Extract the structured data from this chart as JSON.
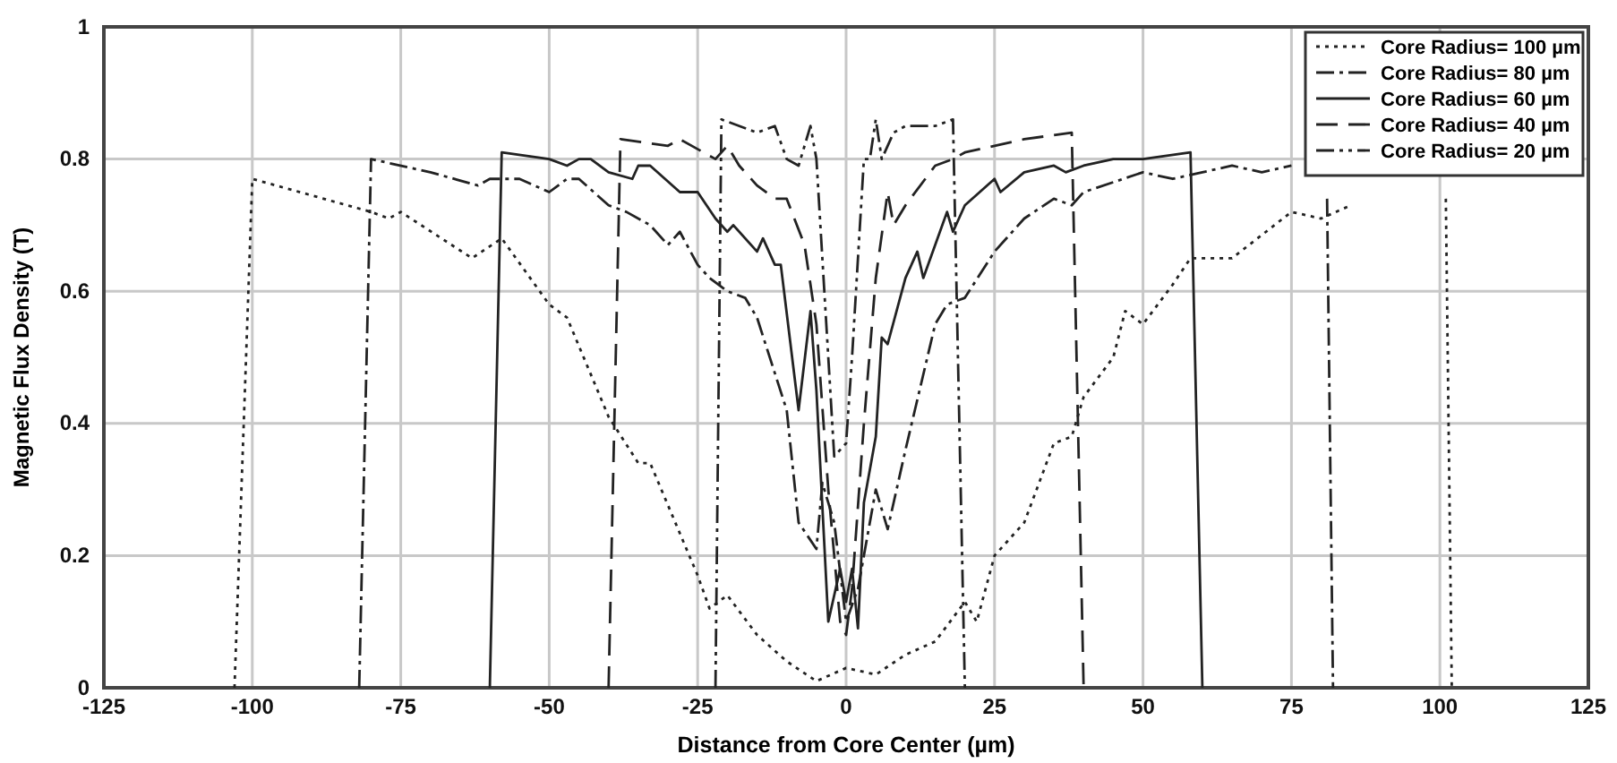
{
  "chart_data": {
    "type": "line",
    "xlabel": "Distance from Core Center (µm)",
    "ylabel": "Magnetic Flux Density (T)",
    "xlim": [
      -125,
      125
    ],
    "xticks": [
      -125,
      -100,
      -75,
      -50,
      -25,
      0,
      25,
      50,
      75,
      100,
      125
    ],
    "ylim": [
      0,
      1
    ],
    "yticks": [
      0,
      0.2,
      0.4,
      0.6,
      0.8,
      1
    ],
    "grid": true,
    "legend": "top right",
    "marker": "none",
    "series": [
      {
        "name": "Core Radius= 100 µm",
        "color": "#222222",
        "line_style": "dotted",
        "x": [
          -103,
          -100,
          -80,
          -77,
          -75,
          -63,
          -58,
          -50,
          -47,
          -40,
          -35,
          -33,
          -25,
          -23,
          -20,
          -15,
          -10,
          -5,
          0,
          5,
          10,
          15,
          20,
          22,
          25,
          30,
          35,
          38,
          40,
          45,
          47,
          50,
          55,
          58,
          65,
          75,
          80,
          85,
          90,
          101,
          102
        ],
        "values": [
          0,
          0.77,
          0.72,
          0.71,
          0.72,
          0.65,
          0.68,
          0.58,
          0.56,
          0.41,
          0.34,
          0.34,
          0.17,
          0.12,
          0.14,
          0.08,
          0.04,
          0.01,
          0.03,
          0.02,
          0.05,
          0.07,
          0.13,
          0.1,
          0.2,
          0.25,
          0.37,
          0.38,
          0.44,
          0.5,
          0.57,
          0.55,
          0.61,
          0.65,
          0.65,
          0.72,
          0.71,
          0.73,
          null,
          0.74,
          0
        ]
      },
      {
        "name": "Core Radius= 80 µm",
        "color": "#222222",
        "line_style": "dashdot",
        "x": [
          -82,
          -80,
          -70,
          -62,
          -60,
          -55,
          -50,
          -47,
          -45,
          -40,
          -37,
          -33,
          -30,
          -28,
          -25,
          -23,
          -20,
          -17,
          -15,
          -10,
          -8,
          -5,
          -4,
          -2,
          0,
          2,
          5,
          7,
          10,
          15,
          17,
          20,
          25,
          30,
          35,
          38,
          40,
          50,
          55,
          60,
          65,
          70,
          75,
          78,
          80,
          81,
          82
        ],
        "values": [
          0,
          0.8,
          0.78,
          0.76,
          0.77,
          0.77,
          0.75,
          0.77,
          0.77,
          0.73,
          0.72,
          0.7,
          0.67,
          0.69,
          0.64,
          0.62,
          0.6,
          0.59,
          0.56,
          0.42,
          0.25,
          0.21,
          0.31,
          0.25,
          0.1,
          0.15,
          0.3,
          0.24,
          0.36,
          0.55,
          0.58,
          0.59,
          0.66,
          0.71,
          0.74,
          0.73,
          0.75,
          0.78,
          0.77,
          0.78,
          0.79,
          0.78,
          0.79,
          null,
          null,
          0.74,
          0
        ]
      },
      {
        "name": "Core Radius= 60 µm",
        "color": "#222222",
        "line_style": "solid",
        "x": [
          -60,
          -58,
          -50,
          -47,
          -45,
          -43,
          -40,
          -36,
          -35,
          -33,
          -28,
          -25,
          -22,
          -20,
          -19,
          -15,
          -14,
          -12,
          -11,
          -8,
          -6,
          -5,
          -3,
          -1,
          0,
          1,
          2,
          3,
          5,
          6,
          7,
          10,
          12,
          13,
          17,
          18,
          20,
          25,
          26,
          30,
          35,
          37,
          40,
          45,
          50,
          58,
          60
        ],
        "values": [
          0,
          0.81,
          0.8,
          0.79,
          0.8,
          0.8,
          0.78,
          0.77,
          0.79,
          0.79,
          0.75,
          0.75,
          0.71,
          0.69,
          0.7,
          0.66,
          0.68,
          0.64,
          0.64,
          0.42,
          0.57,
          0.45,
          0.1,
          0.18,
          0.13,
          0.18,
          0.09,
          0.28,
          0.38,
          0.53,
          0.52,
          0.62,
          0.66,
          0.62,
          0.72,
          0.69,
          0.73,
          0.77,
          0.75,
          0.78,
          0.79,
          0.78,
          0.79,
          0.8,
          0.8,
          0.81,
          0
        ]
      },
      {
        "name": "Core Radius= 40 µm",
        "color": "#222222",
        "line_style": "dashed",
        "x": [
          -40,
          -38,
          -30,
          -28,
          -22,
          -20,
          -18,
          -15,
          -12,
          -10,
          -7,
          -5,
          -3,
          -1,
          0,
          1,
          3,
          5,
          7,
          8,
          10,
          15,
          18,
          20,
          25,
          30,
          38,
          40
        ],
        "values": [
          0,
          0.83,
          0.82,
          0.83,
          0.8,
          0.82,
          0.79,
          0.76,
          0.74,
          0.74,
          0.67,
          0.55,
          0.3,
          0.1,
          0.08,
          0.15,
          0.4,
          0.62,
          0.75,
          0.7,
          0.73,
          0.79,
          0.8,
          0.81,
          0.82,
          0.83,
          0.84,
          0
        ]
      },
      {
        "name": "Core Radius= 20 µm",
        "color": "#222222",
        "line_style": "dashdotdot",
        "x": [
          -22,
          -21,
          -15,
          -12,
          -10,
          -8,
          -6,
          -5,
          -4,
          -2,
          0,
          1,
          3,
          4,
          5,
          6,
          8,
          10,
          15,
          18,
          20
        ],
        "values": [
          0,
          0.86,
          0.84,
          0.85,
          0.8,
          0.79,
          0.85,
          0.8,
          0.65,
          0.35,
          0.37,
          0.5,
          0.8,
          0.8,
          0.86,
          0.8,
          0.84,
          0.85,
          0.85,
          0.86,
          0
        ]
      }
    ]
  }
}
